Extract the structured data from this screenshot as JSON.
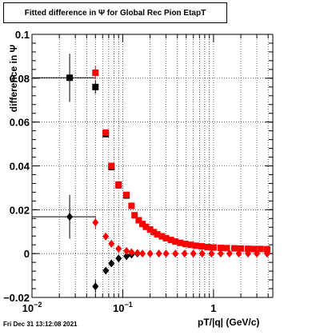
{
  "title": "Fitted difference in  Ψ  for Global Rec Pion EtapT",
  "footer": "Fri Dec 31 13:12:08 2021",
  "chart_data": {
    "type": "scatter",
    "title": "Fitted difference in  Ψ  for Global Rec Pion EtapT",
    "xlabel": "pT/|q| (GeV/c)",
    "ylabel": "difference in  Ψ",
    "xscale": "log",
    "xlim": [
      0.01,
      4.5
    ],
    "ylim": [
      -0.02,
      0.1
    ],
    "grid": true,
    "xticks": [
      {
        "value": 0.01,
        "mantissa": "10",
        "exp": "−2"
      },
      {
        "value": 0.1,
        "mantissa": "10",
        "exp": "−1"
      },
      {
        "value": 1,
        "mantissa": "1",
        "exp": ""
      }
    ],
    "yticks": [
      {
        "value": -0.02,
        "label": "−0.02"
      },
      {
        "value": 0,
        "label": "0"
      },
      {
        "value": 0.02,
        "label": "0.02"
      },
      {
        "value": 0.04,
        "label": "0.04"
      },
      {
        "value": 0.06,
        "label": "0.06"
      },
      {
        "value": 0.08,
        "label": "0.08"
      },
      {
        "value": 0.1,
        "label": "0.1"
      }
    ],
    "series": [
      {
        "marker": "square",
        "color": "#000000",
        "points": [
          {
            "x": 0.026,
            "y": 0.0802,
            "xerr": [
              0.016,
              0.0235
            ],
            "yerr": 0.011
          },
          {
            "x": 0.05,
            "y": 0.076,
            "xerr": [
              0.003,
              0.004
            ],
            "yerr": 0.003
          },
          {
            "x": 0.065,
            "y": 0.0545
          },
          {
            "x": 0.075,
            "y": 0.0395
          },
          {
            "x": 0.09,
            "y": 0.0312
          },
          {
            "x": 0.11,
            "y": 0.0265
          }
        ]
      },
      {
        "marker": "square",
        "color": "#ff0000",
        "points": [
          {
            "x": 0.05,
            "y": 0.0825,
            "xerr": [
              0.003,
              0.004
            ],
            "yerr": 0.003
          },
          {
            "x": 0.065,
            "y": 0.0552
          },
          {
            "x": 0.075,
            "y": 0.04
          },
          {
            "x": 0.09,
            "y": 0.0315
          },
          {
            "x": 0.11,
            "y": 0.0268
          },
          {
            "x": 0.125,
            "y": 0.0218
          },
          {
            "x": 0.135,
            "y": 0.0175
          },
          {
            "x": 0.15,
            "y": 0.0152
          },
          {
            "x": 0.165,
            "y": 0.0135
          },
          {
            "x": 0.18,
            "y": 0.0122
          },
          {
            "x": 0.2,
            "y": 0.011
          },
          {
            "x": 0.22,
            "y": 0.0098
          },
          {
            "x": 0.24,
            "y": 0.0088
          },
          {
            "x": 0.27,
            "y": 0.0079
          },
          {
            "x": 0.3,
            "y": 0.007
          },
          {
            "x": 0.34,
            "y": 0.0062
          },
          {
            "x": 0.38,
            "y": 0.0055
          },
          {
            "x": 0.43,
            "y": 0.0049
          },
          {
            "x": 0.49,
            "y": 0.0044
          },
          {
            "x": 0.56,
            "y": 0.004
          },
          {
            "x": 0.64,
            "y": 0.0036
          },
          {
            "x": 0.74,
            "y": 0.0033
          },
          {
            "x": 0.86,
            "y": 0.003
          },
          {
            "x": 1.0,
            "y": 0.0028
          },
          {
            "x": 1.2,
            "y": 0.0026
          },
          {
            "x": 1.4,
            "y": 0.0025
          },
          {
            "x": 1.7,
            "y": 0.0024
          },
          {
            "x": 2.0,
            "y": 0.0023
          },
          {
            "x": 2.4,
            "y": 0.0022
          },
          {
            "x": 2.8,
            "y": 0.0021
          },
          {
            "x": 3.3,
            "y": 0.0021
          },
          {
            "x": 3.9,
            "y": 0.002
          }
        ]
      },
      {
        "marker": "diamond",
        "color": "#000000",
        "points": [
          {
            "x": 0.026,
            "y": 0.0168,
            "xerr": [
              0.016,
              0.0235
            ],
            "yerr": 0.01
          },
          {
            "x": 0.05,
            "y": -0.015,
            "xerr": [
              0.003,
              0.004
            ],
            "yerr": 0.003
          },
          {
            "x": 0.065,
            "y": -0.0078
          },
          {
            "x": 0.075,
            "y": -0.0045
          },
          {
            "x": 0.09,
            "y": -0.0022
          },
          {
            "x": 0.11,
            "y": -0.0012
          },
          {
            "x": 0.125,
            "y": -0.0005
          },
          {
            "x": 0.145,
            "y": 0.0
          },
          {
            "x": 3.9,
            "y": 0.0
          }
        ]
      },
      {
        "marker": "diamond",
        "color": "#ff0000",
        "points": [
          {
            "x": 0.05,
            "y": 0.0142,
            "xerr": [
              0.003,
              0.004
            ],
            "yerr": 0.003
          },
          {
            "x": 0.065,
            "y": 0.0078
          },
          {
            "x": 0.075,
            "y": 0.0045
          },
          {
            "x": 0.09,
            "y": 0.0022
          },
          {
            "x": 0.11,
            "y": 0.0012
          },
          {
            "x": 0.125,
            "y": 0.0006
          },
          {
            "x": 0.145,
            "y": 0.0003
          },
          {
            "x": 0.165,
            "y": 0.0
          },
          {
            "x": 0.2,
            "y": 0.0
          },
          {
            "x": 0.25,
            "y": 0.0
          },
          {
            "x": 0.3,
            "y": 0.0
          },
          {
            "x": 0.38,
            "y": 0.0
          },
          {
            "x": 0.48,
            "y": 0.0
          },
          {
            "x": 0.6,
            "y": 0.0
          },
          {
            "x": 0.75,
            "y": 0.0
          },
          {
            "x": 0.95,
            "y": 0.0
          },
          {
            "x": 1.2,
            "y": 0.0
          },
          {
            "x": 1.5,
            "y": 0.0
          },
          {
            "x": 1.9,
            "y": 0.0
          },
          {
            "x": 2.4,
            "y": 0.0
          },
          {
            "x": 3.0,
            "y": 0.0
          },
          {
            "x": 3.9,
            "y": 0.0
          }
        ]
      }
    ]
  }
}
